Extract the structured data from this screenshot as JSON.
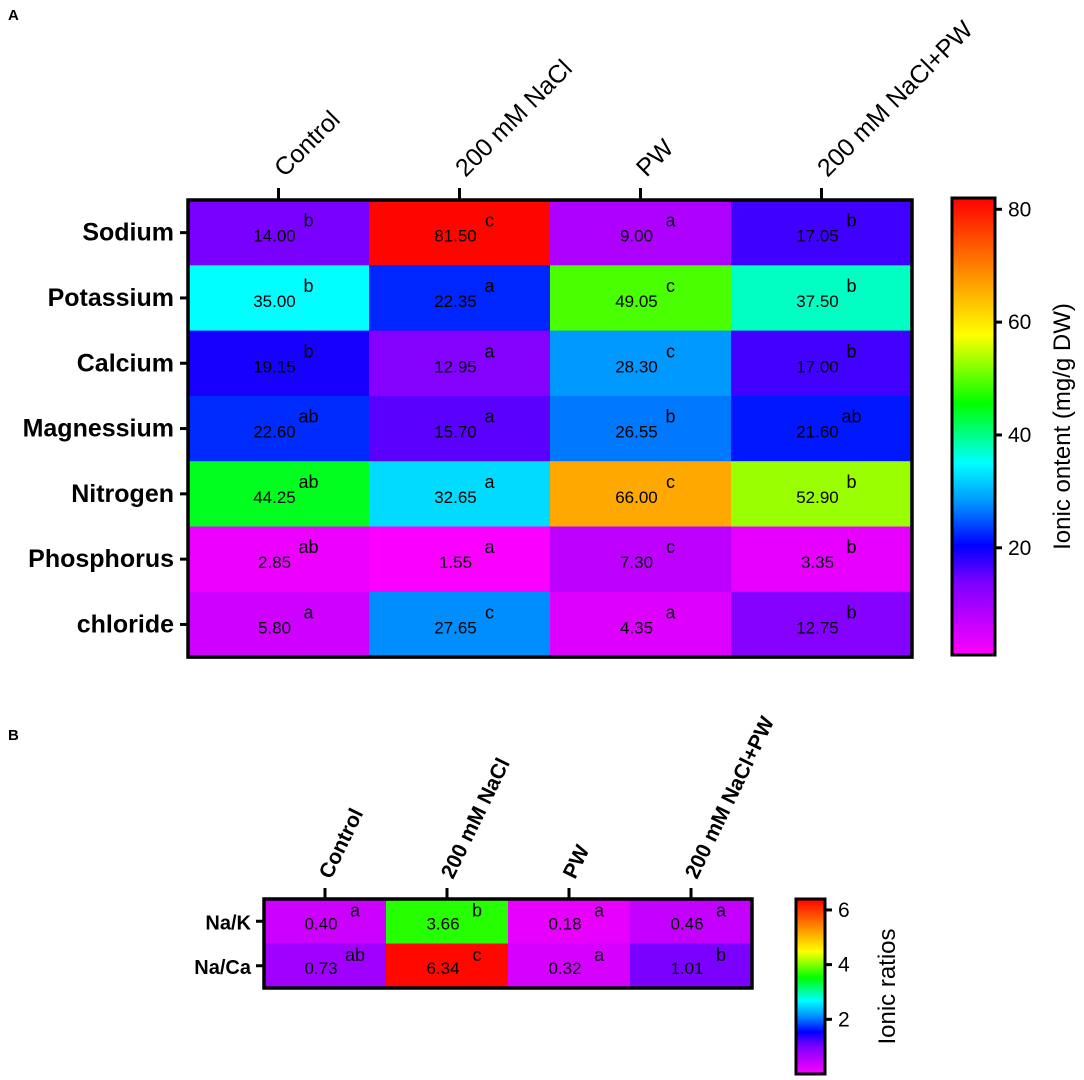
{
  "chart_data": [
    {
      "type": "heatmap",
      "panel_label": "A",
      "columns": [
        "Control",
        "200 mM NaCl",
        "PW",
        "200 mM NaCl+PW"
      ],
      "rows": [
        "Sodium",
        "Potassium",
        "Calcium",
        "Magnessium",
        "Nitrogen",
        "Phosphorus",
        "chloride"
      ],
      "values": [
        [
          "14.00",
          "81.50",
          "9.00",
          "17.05"
        ],
        [
          "35.00",
          "22.35",
          "49.05",
          "37.50"
        ],
        [
          "19.15",
          "12.95",
          "28.30",
          "17.00"
        ],
        [
          "22.60",
          "15.70",
          "26.55",
          "21.60"
        ],
        [
          "44.25",
          "32.65",
          "66.00",
          "52.90"
        ],
        [
          "2.85",
          "1.55",
          "7.30",
          "3.35"
        ],
        [
          "5.80",
          "27.65",
          "4.35",
          "12.75"
        ]
      ],
      "significance": [
        [
          "b",
          "c",
          "a",
          "b"
        ],
        [
          "b",
          "a",
          "c",
          "b"
        ],
        [
          "b",
          "a",
          "c",
          "b"
        ],
        [
          "ab",
          "a",
          "b",
          "ab"
        ],
        [
          "ab",
          "a",
          "c",
          "b"
        ],
        [
          "ab",
          "a",
          "c",
          "b"
        ],
        [
          "a",
          "c",
          "a",
          "b"
        ]
      ],
      "colorbar": {
        "title": "Ionic ontent (mg/g DW)",
        "range": [
          1,
          82
        ],
        "ticks": [
          20,
          40,
          60,
          80
        ],
        "tick_labels": [
          "20",
          "40",
          "60",
          "80"
        ]
      }
    },
    {
      "type": "heatmap",
      "panel_label": "B",
      "columns": [
        "Control",
        "200 mM NaCl",
        "PW",
        "200 mM NaCl+PW"
      ],
      "rows": [
        "Na/K",
        "Na/Ca"
      ],
      "values": [
        [
          "0.40",
          "3.66",
          "0.18",
          "0.46"
        ],
        [
          "0.73",
          "6.34",
          "0.32",
          "1.01"
        ]
      ],
      "significance": [
        [
          "a",
          "b",
          "a",
          "a"
        ],
        [
          "ab",
          "c",
          "a",
          "b"
        ]
      ],
      "colorbar": {
        "title": "Ionic ratios",
        "range": [
          0,
          6.4
        ],
        "ticks": [
          2,
          4,
          6
        ],
        "tick_labels": [
          "2",
          "4",
          "6"
        ]
      }
    }
  ]
}
